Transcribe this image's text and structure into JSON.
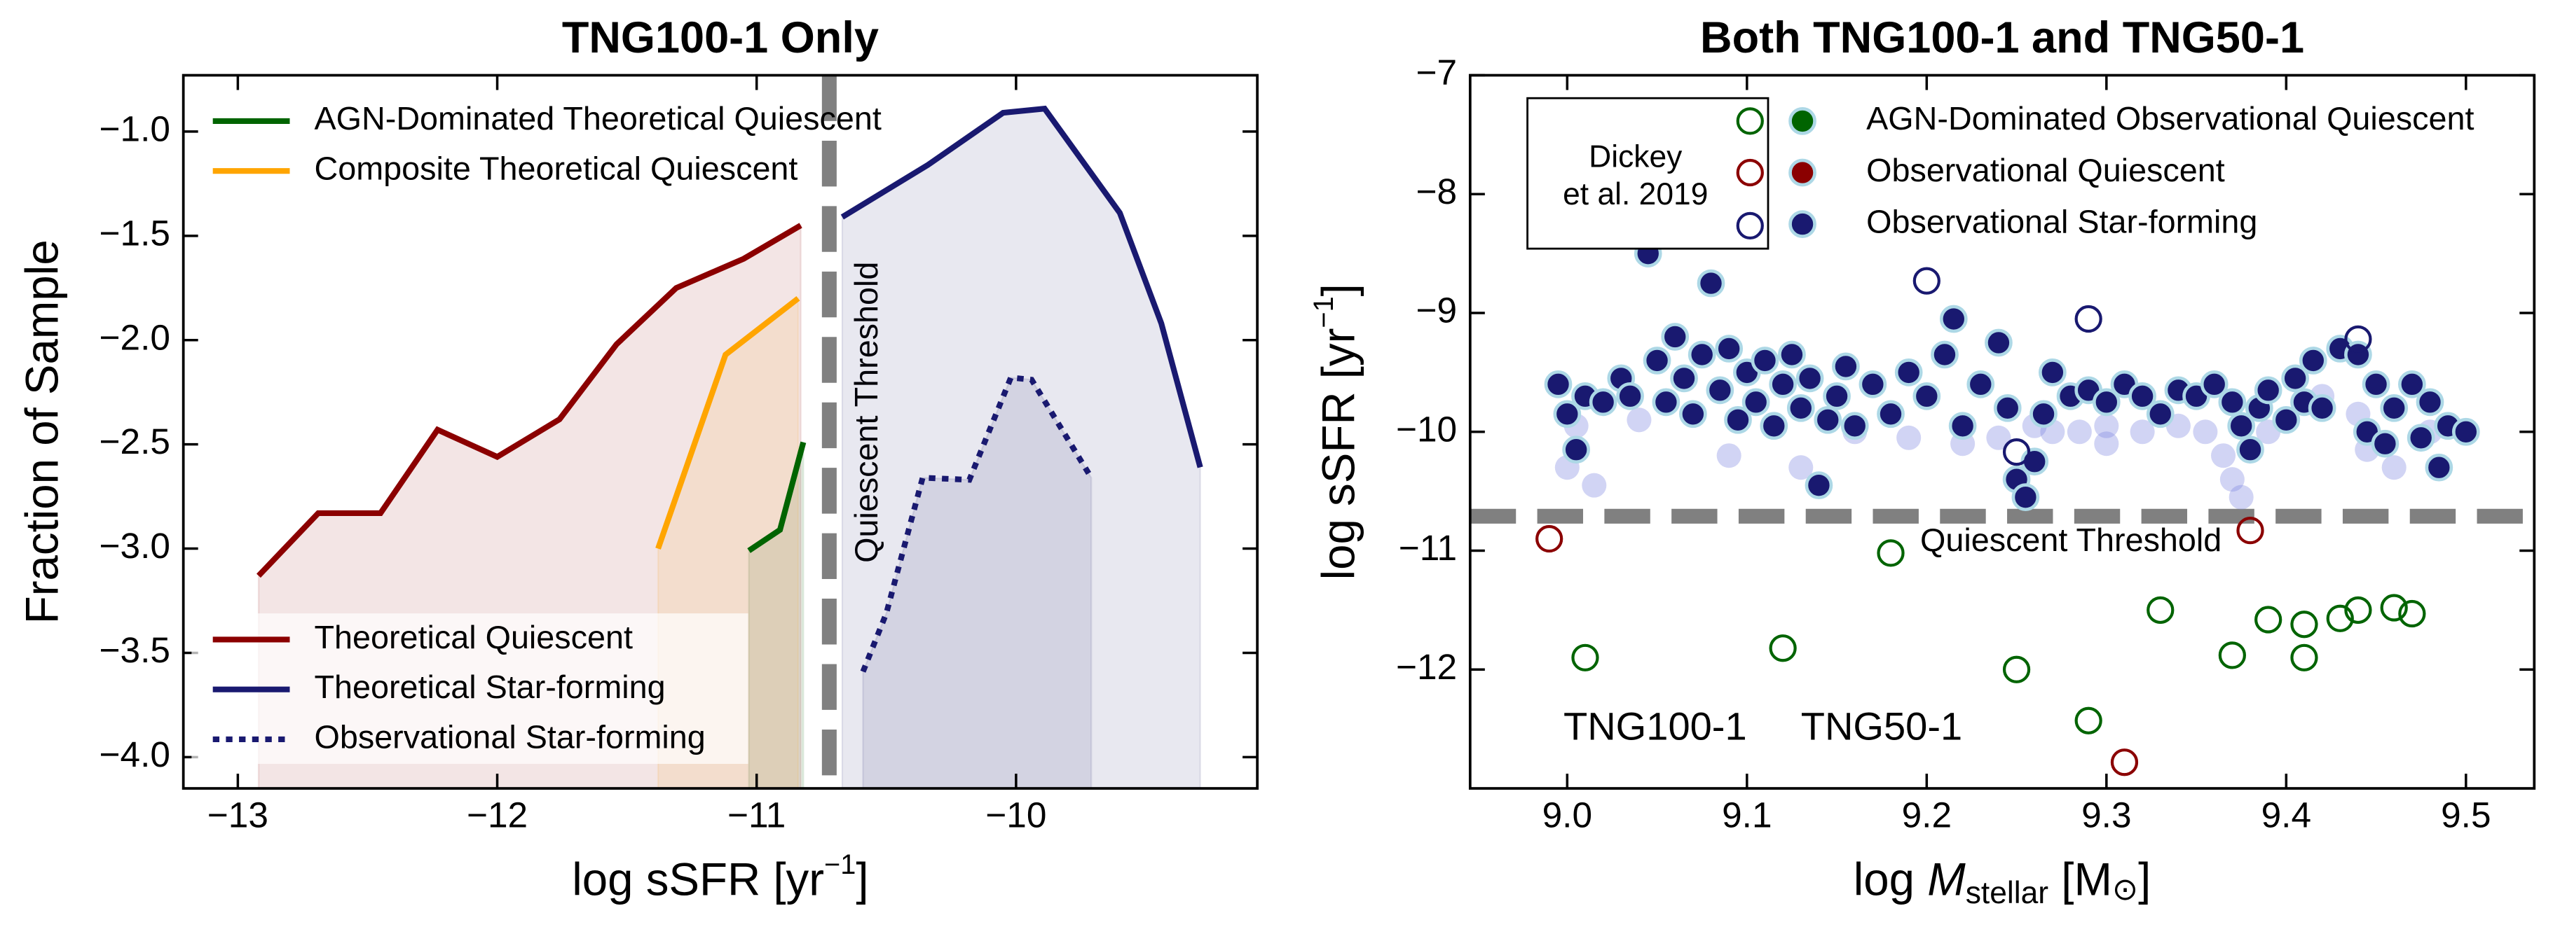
{
  "chart_data": [
    {
      "type": "line",
      "title": "TNG100-1 Only",
      "xlabel": [
        "log sSFR [yr",
        "−1",
        "]"
      ],
      "ylabel": "Fraction of Sample",
      "xlim": [
        -13.21,
        -9.07
      ],
      "ylim": [
        -4.15,
        -0.73
      ],
      "xticks": [
        {
          "value": -13,
          "label": "−13"
        },
        {
          "value": -12,
          "label": "−12"
        },
        {
          "value": -11,
          "label": "−11"
        },
        {
          "value": -10,
          "label": "−10"
        }
      ],
      "yticks": [
        {
          "value": -1.0,
          "label": "−1.0"
        },
        {
          "value": -1.5,
          "label": "−1.5"
        },
        {
          "value": -2.0,
          "label": "−2.0"
        },
        {
          "value": -2.5,
          "label": "−2.5"
        },
        {
          "value": -3.0,
          "label": "−3.0"
        },
        {
          "value": -3.5,
          "label": "−3.5"
        },
        {
          "value": -4.0,
          "label": "−4.0"
        }
      ],
      "threshold": {
        "value": -10.72,
        "label": "Quiescent Threshold",
        "orientation": "vertical"
      },
      "series": [
        {
          "name": "AGN-Dominated Theoretical Quiescent",
          "color": "#006400",
          "legend": "upper left",
          "dash": "solid",
          "x": [
            -11.03,
            -10.91,
            -10.82
          ],
          "y": [
            -3.01,
            -2.91,
            -2.49
          ]
        },
        {
          "name": "Composite Theoretical Quiescent",
          "color": "#ffa500",
          "legend": "upper left",
          "dash": "solid",
          "x": [
            -11.38,
            -11.12,
            -10.84
          ],
          "y": [
            -3.0,
            -2.07,
            -1.8
          ]
        },
        {
          "name": "Theoretical Quiescent",
          "color": "#8b0000",
          "legend": "lower left",
          "dash": "solid",
          "x": [
            -12.92,
            -12.69,
            -12.45,
            -12.23,
            -12.0,
            -11.76,
            -11.54,
            -11.31,
            -11.05,
            -10.83
          ],
          "y": [
            -3.13,
            -2.83,
            -2.83,
            -2.43,
            -2.56,
            -2.38,
            -2.02,
            -1.75,
            -1.61,
            -1.45
          ]
        },
        {
          "name": "Theoretical Star-forming",
          "color": "#191970",
          "legend": "lower left",
          "dash": "solid",
          "x": [
            -10.67,
            -10.34,
            -10.05,
            -9.89,
            -9.6,
            -9.44,
            -9.29
          ],
          "y": [
            -1.41,
            -1.16,
            -0.91,
            -0.89,
            -1.39,
            -1.92,
            -2.61
          ]
        },
        {
          "name": "Observational Star-forming",
          "color": "#191970",
          "legend": "lower left",
          "dash": "dotted",
          "x": [
            -10.59,
            -10.5,
            -10.36,
            -10.18,
            -10.02,
            -9.94,
            -9.71
          ],
          "y": [
            -3.59,
            -3.31,
            -2.66,
            -2.67,
            -2.18,
            -2.19,
            -2.66
          ]
        }
      ]
    },
    {
      "type": "scatter",
      "title": "Both TNG100-1 and TNG50-1",
      "xlabel": [
        "log ",
        "M",
        "stellar",
        " [M",
        "⊙",
        "]"
      ],
      "ylabel": [
        "log sSFR [yr",
        "−1",
        "]"
      ],
      "xlim": [
        8.946,
        9.538
      ],
      "ylim": [
        -13.0,
        -7.0
      ],
      "xticks": [
        {
          "value": 9.0,
          "label": "9.0"
        },
        9.1,
        9.2,
        9.3,
        9.4,
        9.5
      ],
      "yticks": [
        {
          "value": -7,
          "label": "−7"
        },
        {
          "value": -8,
          "label": "−8"
        },
        {
          "value": -9,
          "label": "−9"
        },
        {
          "value": -10,
          "label": "−10"
        },
        {
          "value": -11,
          "label": "−11"
        },
        {
          "value": -12,
          "label": "−12"
        }
      ],
      "threshold": {
        "value": -10.71,
        "label": "Quiescent Threshold",
        "orientation": "horizontal"
      },
      "legend_title": [
        "Dickey",
        "et al. 2019"
      ],
      "classes": [
        {
          "name": "AGN-Dominated Observational Quiescent",
          "color": "#006400"
        },
        {
          "name": "Observational Quiescent",
          "color": "#8b0000"
        },
        {
          "name": "Observational Star-forming",
          "color": "#191970"
        }
      ],
      "series": [
        {
          "class": 0,
          "marker": "open",
          "x": [
            9.01,
            9.12,
            9.18,
            9.25,
            9.29,
            9.33,
            9.37,
            9.39,
            9.41,
            9.41,
            9.43,
            9.44,
            9.46,
            9.47
          ],
          "y": [
            -11.9,
            -11.82,
            -11.02,
            -12.0,
            -12.43,
            -11.5,
            -11.88,
            -11.58,
            -11.62,
            -11.9,
            -11.57,
            -11.5,
            -11.48,
            -11.53
          ]
        },
        {
          "class": 1,
          "marker": "open",
          "x": [
            8.99,
            9.31,
            9.38
          ],
          "y": [
            -10.9,
            -12.78,
            -10.83
          ]
        },
        {
          "class": 2,
          "marker": "open",
          "x": [
            9.2,
            9.29,
            9.44,
            9.25
          ],
          "y": [
            -8.73,
            -9.05,
            -9.22,
            -10.17
          ]
        },
        {
          "name": "TNG100-1",
          "class": 2,
          "marker": "filled",
          "color": "#7b83e0",
          "opacity": 0.35,
          "label_color": "#cccccc",
          "x": [
            9.0,
            9.005,
            9.015,
            9.04,
            9.09,
            9.13,
            9.14,
            9.16,
            9.19,
            9.24,
            9.26,
            9.27,
            9.285,
            9.3,
            9.32,
            9.34,
            9.355,
            9.365,
            9.37,
            9.375,
            9.39,
            9.42,
            9.44,
            9.445,
            9.46,
            9.48,
            9.3,
            9.22
          ],
          "y": [
            -10.3,
            -9.95,
            -10.45,
            -9.9,
            -10.2,
            -10.3,
            -10.45,
            -10.0,
            -10.05,
            -10.05,
            -9.95,
            -10.0,
            -10.0,
            -9.95,
            -10.0,
            -9.95,
            -10.0,
            -10.2,
            -10.4,
            -10.55,
            -10.0,
            -9.7,
            -9.85,
            -10.15,
            -10.3,
            -10.0,
            -10.1,
            -10.1
          ]
        },
        {
          "name": "TNG50-1",
          "class": 2,
          "marker": "filled",
          "color": "#191970",
          "edgecolor": "#add8e6",
          "opacity": 1,
          "label_color": "#777777",
          "x": [
            8.995,
            9.0,
            9.005,
            9.01,
            9.02,
            9.03,
            9.035,
            9.045,
            9.05,
            9.055,
            9.06,
            9.065,
            9.07,
            9.075,
            9.08,
            9.085,
            9.09,
            9.095,
            9.1,
            9.105,
            9.11,
            9.115,
            9.12,
            9.125,
            9.13,
            9.135,
            9.14,
            9.145,
            9.15,
            9.155,
            9.16,
            9.17,
            9.18,
            9.19,
            9.2,
            9.21,
            9.215,
            9.22,
            9.23,
            9.24,
            9.245,
            9.25,
            9.255,
            9.26,
            9.265,
            9.27,
            9.28,
            9.29,
            9.3,
            9.31,
            9.32,
            9.33,
            9.34,
            9.35,
            9.36,
            9.37,
            9.375,
            9.38,
            9.385,
            9.39,
            9.4,
            9.405,
            9.41,
            9.415,
            9.42,
            9.43,
            9.44,
            9.445,
            9.45,
            9.455,
            9.46,
            9.47,
            9.475,
            9.48,
            9.485,
            9.49,
            9.5
          ],
          "y": [
            -9.6,
            -9.85,
            -10.15,
            -9.7,
            -9.75,
            -9.55,
            -9.7,
            -8.5,
            -9.4,
            -9.75,
            -9.2,
            -9.55,
            -9.85,
            -9.35,
            -8.75,
            -9.65,
            -9.3,
            -9.9,
            -9.5,
            -9.75,
            -9.4,
            -9.95,
            -9.6,
            -9.35,
            -9.8,
            -9.55,
            -10.45,
            -9.9,
            -9.7,
            -9.45,
            -9.95,
            -9.6,
            -9.85,
            -9.5,
            -9.7,
            -9.35,
            -9.05,
            -9.95,
            -9.6,
            -9.25,
            -9.8,
            -10.4,
            -10.55,
            -10.25,
            -9.85,
            -9.5,
            -9.7,
            -9.65,
            -9.75,
            -9.6,
            -9.7,
            -9.85,
            -9.65,
            -9.7,
            -9.6,
            -9.75,
            -9.95,
            -10.15,
            -9.8,
            -9.65,
            -9.9,
            -9.55,
            -9.75,
            -9.4,
            -9.8,
            -9.3,
            -9.35,
            -10.0,
            -9.6,
            -10.1,
            -9.8,
            -9.6,
            -10.05,
            -9.75,
            -10.3,
            -9.95,
            -10.0
          ]
        }
      ]
    }
  ]
}
